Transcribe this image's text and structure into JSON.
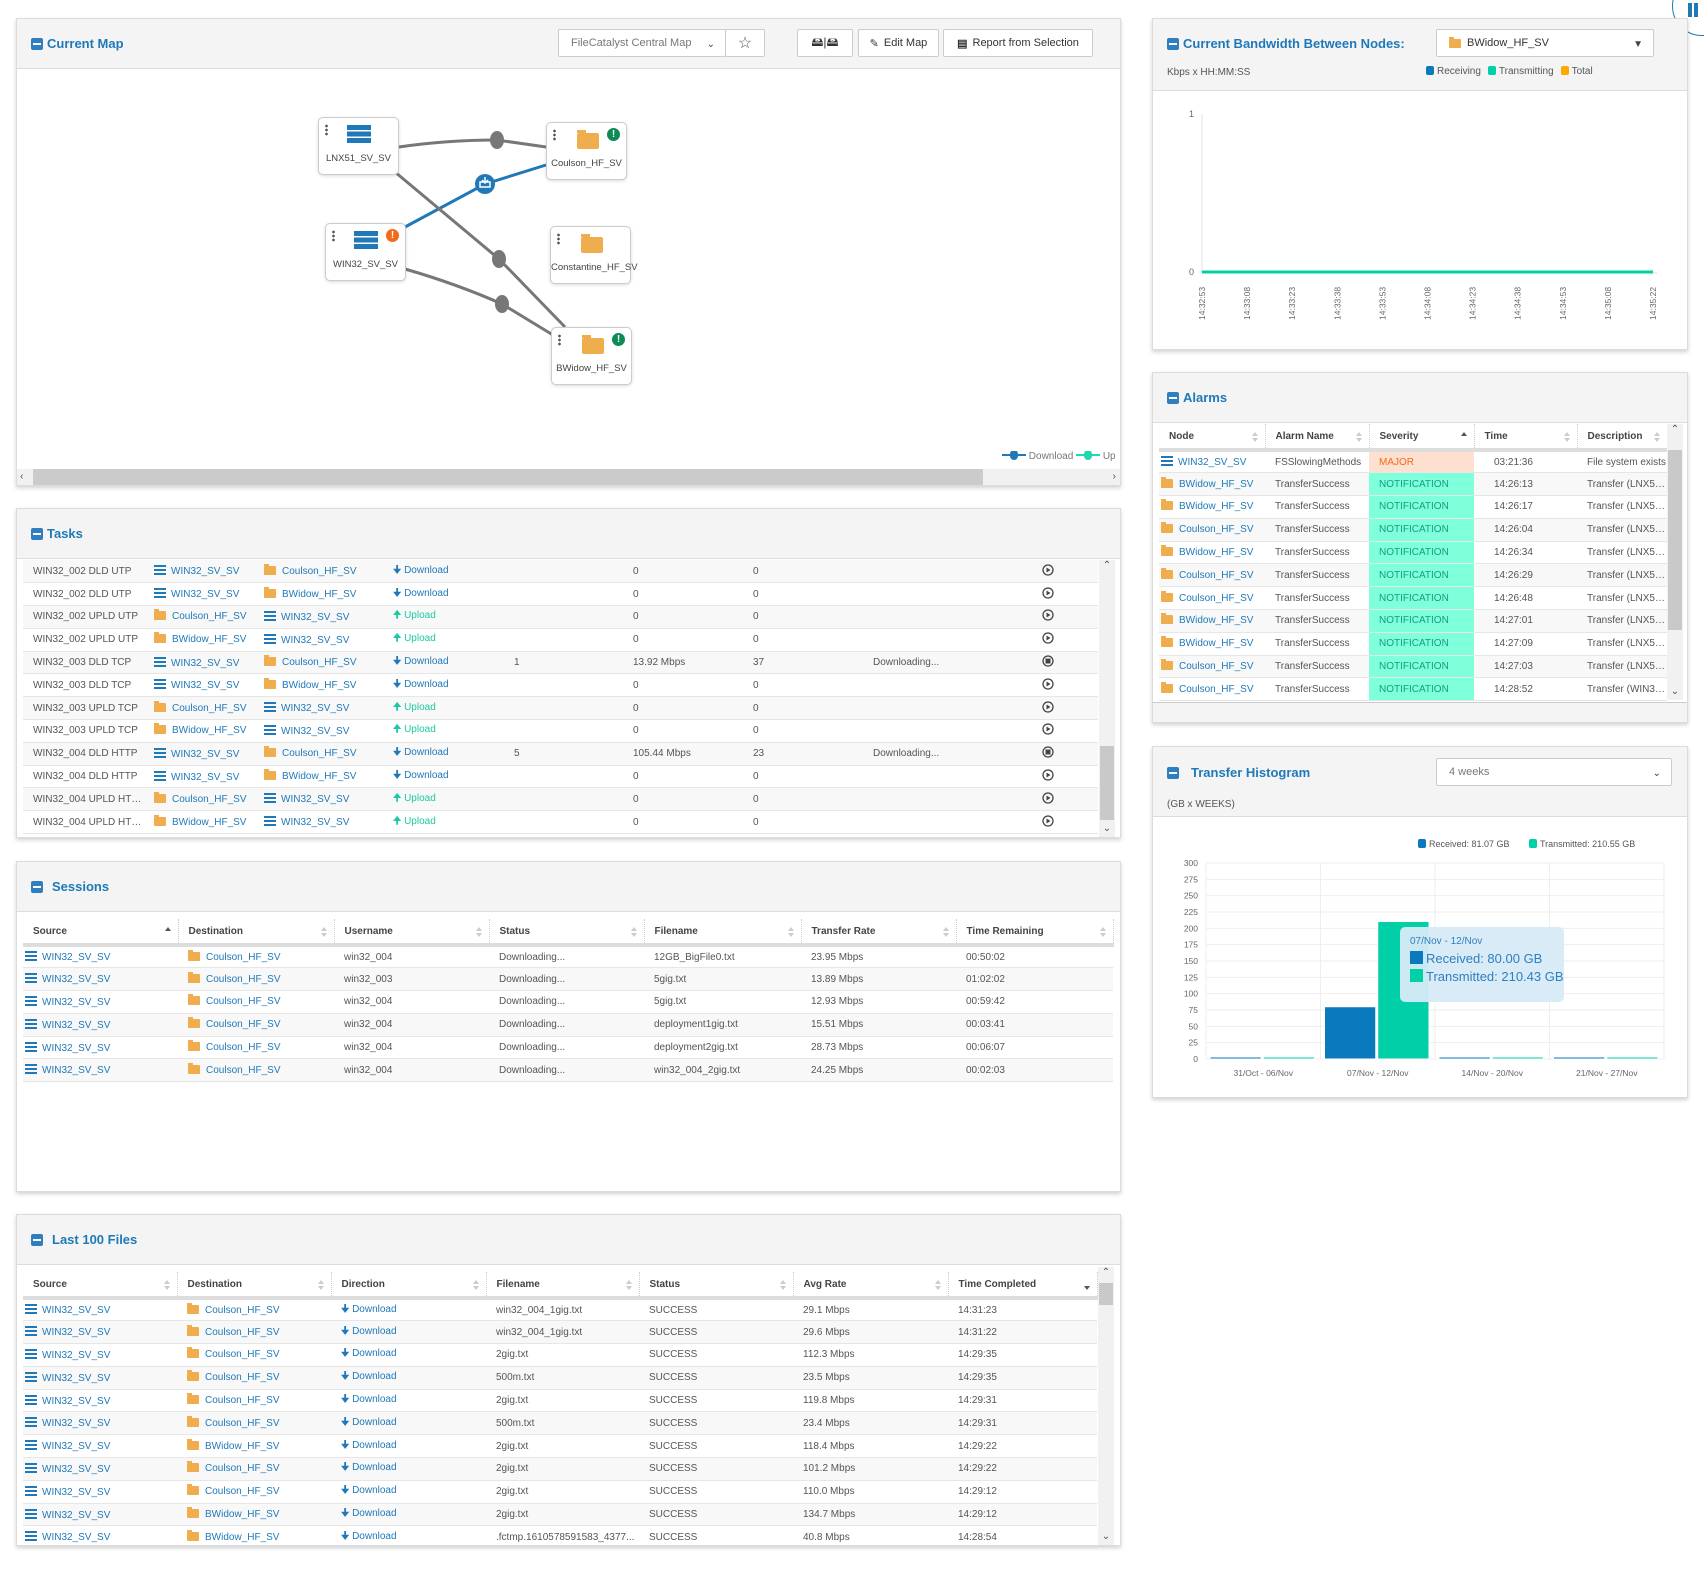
{
  "map": {
    "title": "Current Map",
    "map_select": "FileCatalyst Central Map",
    "edit_label": "Edit Map",
    "report_label": "Report from Selection",
    "nodes": [
      "LNX51_SV_SV",
      "Coulson_HF_SV",
      "WIN32_SV_SV",
      "Constantine_HF_SV",
      "BWidow_HF_SV"
    ],
    "legend": {
      "download": "Download",
      "upload": "Up"
    },
    "colors": {
      "download": "#1f79b8",
      "upload": "#1dd9b0",
      "link": "#777777",
      "ok": "#0d8a55",
      "warn": "#f26a1b"
    }
  },
  "bandwidth": {
    "title": "Current Bandwidth Between Nodes:",
    "node_select": "BWidow_HF_SV",
    "units": "Kbps x HH:MM:SS",
    "legend": [
      {
        "label": "Receiving",
        "color": "#0b79bd"
      },
      {
        "label": "Transmitting",
        "color": "#00cfa8"
      },
      {
        "label": "Total",
        "color": "#ffa800"
      }
    ]
  },
  "chart_data": [
    {
      "type": "line",
      "title": "Current Bandwidth Between Nodes",
      "xlabel": "HH:MM:SS",
      "ylabel": "Kbps",
      "x": [
        "14:32:53",
        "14:33:08",
        "14:33:23",
        "14:33:38",
        "14:33:53",
        "14:34:08",
        "14:34:23",
        "14:34:38",
        "14:34:53",
        "14:35:08",
        "14:35:22"
      ],
      "ylim": [
        0,
        1
      ],
      "yticks": [
        "0",
        "1"
      ],
      "series": [
        {
          "name": "Receiving",
          "values": [
            0,
            0,
            0,
            0,
            0,
            0,
            0,
            0,
            0,
            0,
            0
          ]
        },
        {
          "name": "Transmitting",
          "values": [
            0,
            0,
            0,
            0,
            0,
            0,
            0,
            0,
            0,
            0,
            0
          ]
        },
        {
          "name": "Total",
          "values": [
            0,
            0,
            0,
            0,
            0,
            0,
            0,
            0,
            0,
            0,
            0
          ]
        }
      ]
    },
    {
      "type": "bar",
      "title": "Transfer Histogram",
      "xlabel": "WEEKS",
      "ylabel": "GB",
      "categories": [
        "31/Oct - 06/Nov",
        "07/Nov - 12/Nov",
        "14/Nov - 20/Nov",
        "21/Nov - 27/Nov"
      ],
      "ylim": [
        0,
        300
      ],
      "yticks": [
        "0",
        "25",
        "50",
        "75",
        "100",
        "125",
        "150",
        "175",
        "200",
        "225",
        "250",
        "275",
        "300"
      ],
      "legend": [
        "Received: 81.07 GB",
        "Transmitted: 210.55 GB"
      ],
      "series": [
        {
          "name": "Received",
          "color": "#0b79bd",
          "values": [
            0.4,
            80.0,
            0.4,
            0.27
          ]
        },
        {
          "name": "Transmitted",
          "color": "#00cfa8",
          "values": [
            0.04,
            210.43,
            0.04,
            0.04
          ]
        }
      ],
      "tooltip": {
        "title": "07/Nov - 12/Nov",
        "received": "Received:  80.00 GB",
        "transmitted": "Transmitted:  210.43 GB"
      }
    }
  ],
  "alarms": {
    "title": "Alarms",
    "columns": [
      "Node",
      "Alarm Name",
      "Severity",
      "Time",
      "Description"
    ],
    "rows": [
      {
        "node": "WIN32_SV_SV",
        "name": "FSSlowingMethods",
        "severity": "MAJOR",
        "time": "03:21:36",
        "desc": "File system exists"
      },
      {
        "node": "BWidow_HF_SV",
        "name": "TransferSuccess",
        "severity": "NOTIFICATION",
        "time": "14:26:13",
        "desc": "Transfer (LNX51_..."
      },
      {
        "node": "BWidow_HF_SV",
        "name": "TransferSuccess",
        "severity": "NOTIFICATION",
        "time": "14:26:17",
        "desc": "Transfer (LNX51_..."
      },
      {
        "node": "Coulson_HF_SV",
        "name": "TransferSuccess",
        "severity": "NOTIFICATION",
        "time": "14:26:04",
        "desc": "Transfer (LNX51_..."
      },
      {
        "node": "BWidow_HF_SV",
        "name": "TransferSuccess",
        "severity": "NOTIFICATION",
        "time": "14:26:34",
        "desc": "Transfer (LNX51_..."
      },
      {
        "node": "Coulson_HF_SV",
        "name": "TransferSuccess",
        "severity": "NOTIFICATION",
        "time": "14:26:29",
        "desc": "Transfer (LNX51_..."
      },
      {
        "node": "Coulson_HF_SV",
        "name": "TransferSuccess",
        "severity": "NOTIFICATION",
        "time": "14:26:48",
        "desc": "Transfer (LNX51_..."
      },
      {
        "node": "BWidow_HF_SV",
        "name": "TransferSuccess",
        "severity": "NOTIFICATION",
        "time": "14:27:01",
        "desc": "Transfer (LNX51_..."
      },
      {
        "node": "BWidow_HF_SV",
        "name": "TransferSuccess",
        "severity": "NOTIFICATION",
        "time": "14:27:09",
        "desc": "Transfer (LNX51_..."
      },
      {
        "node": "Coulson_HF_SV",
        "name": "TransferSuccess",
        "severity": "NOTIFICATION",
        "time": "14:27:03",
        "desc": "Transfer (LNX51_..."
      },
      {
        "node": "Coulson_HF_SV",
        "name": "TransferSuccess",
        "severity": "NOTIFICATION",
        "time": "14:28:52",
        "desc": "Transfer (WIN32_..."
      }
    ]
  },
  "histogram": {
    "title": "Transfer Histogram",
    "range_select": "4 weeks",
    "units": "(GB x WEEKS)"
  },
  "tasks": {
    "title": "Tasks",
    "rows": [
      {
        "name": "WIN32_002 DLD UTP",
        "source": "WIN32_SV_SV",
        "destination": "Coulson_HF_SV",
        "direction": "Download",
        "files": "",
        "rate": "0",
        "count": "0",
        "status": "",
        "action": "play"
      },
      {
        "name": "WIN32_002 DLD UTP",
        "source": "WIN32_SV_SV",
        "destination": "BWidow_HF_SV",
        "direction": "Download",
        "files": "",
        "rate": "0",
        "count": "0",
        "status": "",
        "action": "play"
      },
      {
        "name": "WIN32_002 UPLD UTP",
        "source": "Coulson_HF_SV",
        "destination": "WIN32_SV_SV",
        "direction": "Upload",
        "files": "",
        "rate": "0",
        "count": "0",
        "status": "",
        "action": "play"
      },
      {
        "name": "WIN32_002 UPLD UTP",
        "source": "BWidow_HF_SV",
        "destination": "WIN32_SV_SV",
        "direction": "Upload",
        "files": "",
        "rate": "0",
        "count": "0",
        "status": "",
        "action": "play"
      },
      {
        "name": "WIN32_003 DLD TCP",
        "source": "WIN32_SV_SV",
        "destination": "Coulson_HF_SV",
        "direction": "Download",
        "files": "1",
        "rate": "13.92 Mbps",
        "count": "37",
        "status": "Downloading...",
        "action": "stop"
      },
      {
        "name": "WIN32_003 DLD TCP",
        "source": "WIN32_SV_SV",
        "destination": "BWidow_HF_SV",
        "direction": "Download",
        "files": "",
        "rate": "0",
        "count": "0",
        "status": "",
        "action": "play"
      },
      {
        "name": "WIN32_003 UPLD TCP",
        "source": "Coulson_HF_SV",
        "destination": "WIN32_SV_SV",
        "direction": "Upload",
        "files": "",
        "rate": "0",
        "count": "0",
        "status": "",
        "action": "play"
      },
      {
        "name": "WIN32_003 UPLD TCP",
        "source": "BWidow_HF_SV",
        "destination": "WIN32_SV_SV",
        "direction": "Upload",
        "files": "",
        "rate": "0",
        "count": "0",
        "status": "",
        "action": "play"
      },
      {
        "name": "WIN32_004 DLD HTTP",
        "source": "WIN32_SV_SV",
        "destination": "Coulson_HF_SV",
        "direction": "Download",
        "files": "5",
        "rate": "105.44 Mbps",
        "count": "23",
        "status": "Downloading...",
        "action": "stop"
      },
      {
        "name": "WIN32_004 DLD HTTP",
        "source": "WIN32_SV_SV",
        "destination": "BWidow_HF_SV",
        "direction": "Download",
        "files": "",
        "rate": "0",
        "count": "0",
        "status": "",
        "action": "play"
      },
      {
        "name": "WIN32_004 UPLD HTTP",
        "source": "Coulson_HF_SV",
        "destination": "WIN32_SV_SV",
        "direction": "Upload",
        "files": "",
        "rate": "0",
        "count": "0",
        "status": "",
        "action": "play"
      },
      {
        "name": "WIN32_004 UPLD HTTP",
        "source": "BWidow_HF_SV",
        "destination": "WIN32_SV_SV",
        "direction": "Upload",
        "files": "",
        "rate": "0",
        "count": "0",
        "status": "",
        "action": "play"
      }
    ]
  },
  "sessions": {
    "title": "Sessions",
    "columns": [
      "Source",
      "Destination",
      "Username",
      "Status",
      "Filename",
      "Transfer Rate",
      "Time Remaining"
    ],
    "rows": [
      {
        "source": "WIN32_SV_SV",
        "destination": "Coulson_HF_SV",
        "username": "win32_004",
        "status": "Downloading...",
        "filename": "12GB_BigFile0.txt",
        "rate": "23.95 Mbps",
        "remaining": "00:50:02"
      },
      {
        "source": "WIN32_SV_SV",
        "destination": "Coulson_HF_SV",
        "username": "win32_003",
        "status": "Downloading...",
        "filename": "5gig.txt",
        "rate": "13.89 Mbps",
        "remaining": "01:02:02"
      },
      {
        "source": "WIN32_SV_SV",
        "destination": "Coulson_HF_SV",
        "username": "win32_004",
        "status": "Downloading...",
        "filename": "5gig.txt",
        "rate": "12.93 Mbps",
        "remaining": "00:59:42"
      },
      {
        "source": "WIN32_SV_SV",
        "destination": "Coulson_HF_SV",
        "username": "win32_004",
        "status": "Downloading...",
        "filename": "deployment1gig.txt",
        "rate": "15.51 Mbps",
        "remaining": "00:03:41"
      },
      {
        "source": "WIN32_SV_SV",
        "destination": "Coulson_HF_SV",
        "username": "win32_004",
        "status": "Downloading...",
        "filename": "deployment2gig.txt",
        "rate": "28.73 Mbps",
        "remaining": "00:06:07"
      },
      {
        "source": "WIN32_SV_SV",
        "destination": "Coulson_HF_SV",
        "username": "win32_004",
        "status": "Downloading...",
        "filename": "win32_004_2gig.txt",
        "rate": "24.25 Mbps",
        "remaining": "00:02:03"
      }
    ]
  },
  "files": {
    "title": "Last 100 Files",
    "columns": [
      "Source",
      "Destination",
      "Direction",
      "Filename",
      "Status",
      "Avg Rate",
      "Time Completed"
    ],
    "rows": [
      {
        "source": "WIN32_SV_SV",
        "destination": "Coulson_HF_SV",
        "direction": "Download",
        "filename": "win32_004_1gig.txt",
        "status": "SUCCESS",
        "rate": "29.1 Mbps",
        "time": "14:31:23"
      },
      {
        "source": "WIN32_SV_SV",
        "destination": "Coulson_HF_SV",
        "direction": "Download",
        "filename": "win32_004_1gig.txt",
        "status": "SUCCESS",
        "rate": "29.6 Mbps",
        "time": "14:31:22"
      },
      {
        "source": "WIN32_SV_SV",
        "destination": "Coulson_HF_SV",
        "direction": "Download",
        "filename": "2gig.txt",
        "status": "SUCCESS",
        "rate": "112.3 Mbps",
        "time": "14:29:35"
      },
      {
        "source": "WIN32_SV_SV",
        "destination": "Coulson_HF_SV",
        "direction": "Download",
        "filename": "500m.txt",
        "status": "SUCCESS",
        "rate": "23.5 Mbps",
        "time": "14:29:35"
      },
      {
        "source": "WIN32_SV_SV",
        "destination": "Coulson_HF_SV",
        "direction": "Download",
        "filename": "2gig.txt",
        "status": "SUCCESS",
        "rate": "119.8 Mbps",
        "time": "14:29:31"
      },
      {
        "source": "WIN32_SV_SV",
        "destination": "Coulson_HF_SV",
        "direction": "Download",
        "filename": "500m.txt",
        "status": "SUCCESS",
        "rate": "23.4 Mbps",
        "time": "14:29:31"
      },
      {
        "source": "WIN32_SV_SV",
        "destination": "BWidow_HF_SV",
        "direction": "Download",
        "filename": "2gig.txt",
        "status": "SUCCESS",
        "rate": "118.4 Mbps",
        "time": "14:29:22"
      },
      {
        "source": "WIN32_SV_SV",
        "destination": "Coulson_HF_SV",
        "direction": "Download",
        "filename": "2gig.txt",
        "status": "SUCCESS",
        "rate": "101.2 Mbps",
        "time": "14:29:22"
      },
      {
        "source": "WIN32_SV_SV",
        "destination": "Coulson_HF_SV",
        "direction": "Download",
        "filename": "2gig.txt",
        "status": "SUCCESS",
        "rate": "110.0 Mbps",
        "time": "14:29:12"
      },
      {
        "source": "WIN32_SV_SV",
        "destination": "BWidow_HF_SV",
        "direction": "Download",
        "filename": "2gig.txt",
        "status": "SUCCESS",
        "rate": "134.7 Mbps",
        "time": "14:29:12"
      },
      {
        "source": "WIN32_SV_SV",
        "destination": "BWidow_HF_SV",
        "direction": "Download",
        "filename": ".fctmp.1610578591583_4377...",
        "status": "SUCCESS",
        "rate": "40.8 Mbps",
        "time": "14:28:54"
      }
    ]
  }
}
